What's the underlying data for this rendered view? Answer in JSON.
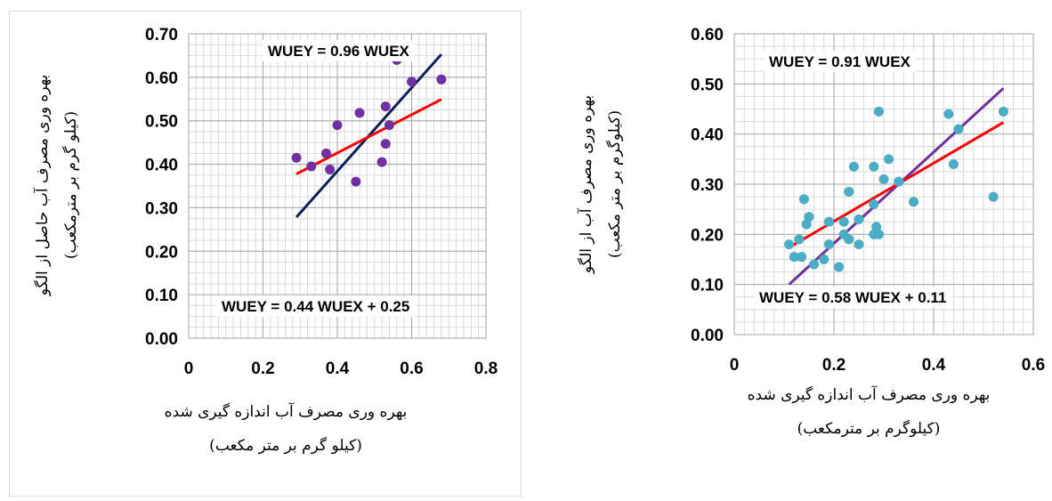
{
  "chart_data": [
    {
      "type": "scatter",
      "xlim": [
        0,
        0.8
      ],
      "ylim": [
        0,
        0.7
      ],
      "x_ticks": [
        "0",
        "0.2",
        "0.4",
        "0.6",
        "0.8"
      ],
      "y_ticks": [
        "0.00",
        "0.10",
        "0.20",
        "0.30",
        "0.40",
        "0.50",
        "0.60",
        "0.70"
      ],
      "xlabel": [
        "بهره وری مصرف آب اندازه گیری شده",
        "(کیلو گرم بر متر مکعب)"
      ],
      "ylabel": [
        "بهره وری مصرف آب حاصل از الگو",
        "(کیلو گرم بر مترمکعب)"
      ],
      "grid": true,
      "points": {
        "color": "#7030a0",
        "x": [
          0.29,
          0.33,
          0.37,
          0.38,
          0.4,
          0.45,
          0.46,
          0.52,
          0.53,
          0.53,
          0.54,
          0.56,
          0.6,
          0.68
        ],
        "y": [
          0.415,
          0.395,
          0.425,
          0.388,
          0.49,
          0.36,
          0.518,
          0.405,
          0.533,
          0.447,
          0.49,
          0.64,
          0.59,
          0.595
        ]
      },
      "lines": [
        {
          "equation": "WUEY = 0.96 WUEX",
          "slope": 0.96,
          "intercept": 0,
          "x_range": [
            0.29,
            0.68
          ],
          "color": "#0d1f5c"
        },
        {
          "equation": "WUEY = 0.44 WUEX + 0.25",
          "slope": 0.44,
          "intercept": 0.25,
          "x_range": [
            0.29,
            0.68
          ],
          "color": "#ff0000"
        }
      ],
      "annotations": [
        "WUEY = 0.96 WUEX",
        "WUEY = 0.44 WUEX + 0.25"
      ]
    },
    {
      "type": "scatter",
      "xlim": [
        0,
        0.6
      ],
      "ylim": [
        0,
        0.6
      ],
      "x_ticks": [
        "0",
        "0.2",
        "0.4",
        "0.6"
      ],
      "y_ticks": [
        "0.00",
        "0.10",
        "0.20",
        "0.30",
        "0.40",
        "0.50",
        "0.60"
      ],
      "xlabel": [
        "بهره وری مصرف آب اندازه گیری شده",
        "(کیلوگرم بر مترمکعب)"
      ],
      "ylabel": [
        "بهره وری مصرف آب از الگو",
        "(کیلوگرم بر متر مکعب)"
      ],
      "grid": true,
      "points": {
        "color": "#4bacc6",
        "x": [
          0.11,
          0.12,
          0.13,
          0.135,
          0.14,
          0.145,
          0.15,
          0.16,
          0.18,
          0.19,
          0.19,
          0.21,
          0.22,
          0.22,
          0.23,
          0.23,
          0.24,
          0.25,
          0.25,
          0.28,
          0.28,
          0.28,
          0.285,
          0.29,
          0.29,
          0.3,
          0.31,
          0.33,
          0.36,
          0.43,
          0.44,
          0.45,
          0.52,
          0.54
        ],
        "y": [
          0.18,
          0.155,
          0.19,
          0.155,
          0.27,
          0.22,
          0.235,
          0.14,
          0.15,
          0.18,
          0.225,
          0.135,
          0.2,
          0.225,
          0.285,
          0.19,
          0.335,
          0.18,
          0.23,
          0.335,
          0.26,
          0.2,
          0.215,
          0.2,
          0.445,
          0.31,
          0.35,
          0.305,
          0.265,
          0.44,
          0.34,
          0.41,
          0.275,
          0.445
        ]
      },
      "lines": [
        {
          "equation": "WUEY = 0.91 WUEX",
          "slope": 0.91,
          "intercept": 0,
          "x_range": [
            0.11,
            0.54
          ],
          "color": "#7030a0"
        },
        {
          "equation": "WUEY = 0.58 WUEX + 0.11",
          "slope": 0.58,
          "intercept": 0.11,
          "x_range": [
            0.11,
            0.54
          ],
          "color": "#ff0000"
        }
      ],
      "annotations": [
        "WUEY = 0.91 WUEX",
        "WUEY = 0.58 WUEX + 0.11"
      ]
    }
  ]
}
